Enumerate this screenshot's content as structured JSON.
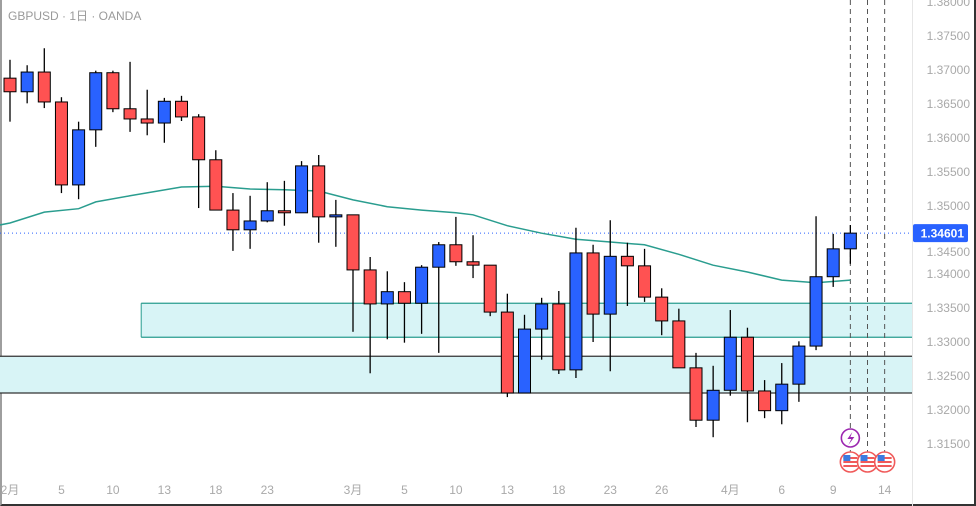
{
  "header": {
    "title": "GBPUSD · 1日 · OANDA"
  },
  "colors": {
    "up": "#2962ff",
    "down": "#ff5252",
    "ma": "#2a9d8f",
    "zone_fill": "#d8f4f6",
    "zone1_border": "#2a9d8f",
    "zone2_border": "#333333",
    "last_price": "#2962ff"
  },
  "chart_data": {
    "type": "candlestick",
    "symbol": "GBPUSD",
    "timeframe": "1日",
    "source": "OANDA",
    "ylim": [
      1.3124,
      1.3806
    ],
    "y_ticks": [
      "1.38000",
      "1.37500",
      "1.37000",
      "1.36500",
      "1.36000",
      "1.35500",
      "1.35000",
      "1.34500",
      "1.34000",
      "1.33500",
      "1.33000",
      "1.32500",
      "1.32000",
      "1.31500"
    ],
    "x_ticks": [
      {
        "index": 1,
        "label": "2月"
      },
      {
        "index": 4,
        "label": "5"
      },
      {
        "index": 7,
        "label": "10"
      },
      {
        "index": 10,
        "label": "13"
      },
      {
        "index": 13,
        "label": "18"
      },
      {
        "index": 16,
        "label": "23"
      },
      {
        "index": 21,
        "label": "3月"
      },
      {
        "index": 24,
        "label": "5"
      },
      {
        "index": 27,
        "label": "10"
      },
      {
        "index": 30,
        "label": "13"
      },
      {
        "index": 33,
        "label": "18"
      },
      {
        "index": 36,
        "label": "23"
      },
      {
        "index": 39,
        "label": "26"
      },
      {
        "index": 43,
        "label": "4月"
      },
      {
        "index": 46,
        "label": "6"
      },
      {
        "index": 49,
        "label": "9"
      },
      {
        "index": 52,
        "label": "14"
      }
    ],
    "ohlc": [
      [
        1.3688,
        1.3715,
        1.3624,
        1.3668
      ],
      [
        1.3668,
        1.3707,
        1.3651,
        1.3697
      ],
      [
        1.3697,
        1.3732,
        1.3644,
        1.3653
      ],
      [
        1.3653,
        1.366,
        1.3519,
        1.3531
      ],
      [
        1.3531,
        1.3624,
        1.351,
        1.3612
      ],
      [
        1.3612,
        1.3699,
        1.3587,
        1.3696
      ],
      [
        1.3696,
        1.3699,
        1.3638,
        1.3643
      ],
      [
        1.3643,
        1.3712,
        1.3609,
        1.3628
      ],
      [
        1.3628,
        1.3671,
        1.3604,
        1.3622
      ],
      [
        1.3622,
        1.3659,
        1.3593,
        1.3654
      ],
      [
        1.3654,
        1.3662,
        1.3625,
        1.3631
      ],
      [
        1.3631,
        1.3635,
        1.3497,
        1.3568
      ],
      [
        1.3568,
        1.3582,
        1.3494,
        1.3494
      ],
      [
        1.3494,
        1.3519,
        1.3434,
        1.3465
      ],
      [
        1.3465,
        1.3515,
        1.3437,
        1.3478
      ],
      [
        1.3478,
        1.3535,
        1.3476,
        1.3493
      ],
      [
        1.3493,
        1.3537,
        1.3471,
        1.349
      ],
      [
        1.349,
        1.3566,
        1.349,
        1.3559
      ],
      [
        1.3559,
        1.3575,
        1.3446,
        1.3484
      ],
      [
        1.3484,
        1.3509,
        1.344,
        1.3487
      ],
      [
        1.3487,
        1.3487,
        1.3315,
        1.3406
      ],
      [
        1.3406,
        1.3425,
        1.3254,
        1.3356
      ],
      [
        1.3356,
        1.3404,
        1.3304,
        1.3374
      ],
      [
        1.3374,
        1.3388,
        1.3299,
        1.3357
      ],
      [
        1.3357,
        1.3413,
        1.3312,
        1.341
      ],
      [
        1.341,
        1.3447,
        1.3284,
        1.3443
      ],
      [
        1.3443,
        1.3484,
        1.3412,
        1.3418
      ],
      [
        1.3418,
        1.3457,
        1.3394,
        1.3413
      ],
      [
        1.3413,
        1.3413,
        1.3338,
        1.3344
      ],
      [
        1.3344,
        1.3371,
        1.3219,
        1.3225
      ],
      [
        1.3225,
        1.334,
        1.3225,
        1.3319
      ],
      [
        1.3319,
        1.3365,
        1.3274,
        1.3356
      ],
      [
        1.3356,
        1.3375,
        1.3253,
        1.3259
      ],
      [
        1.3259,
        1.3468,
        1.3247,
        1.3431
      ],
      [
        1.3431,
        1.3443,
        1.33,
        1.3341
      ],
      [
        1.3341,
        1.3479,
        1.3257,
        1.3426
      ],
      [
        1.3426,
        1.3446,
        1.3353,
        1.3412
      ],
      [
        1.3412,
        1.3437,
        1.3359,
        1.3366
      ],
      [
        1.3366,
        1.3379,
        1.331,
        1.3331
      ],
      [
        1.3331,
        1.3349,
        1.3262,
        1.3262
      ],
      [
        1.3262,
        1.3284,
        1.3175,
        1.3185
      ],
      [
        1.3185,
        1.3265,
        1.316,
        1.3229
      ],
      [
        1.3229,
        1.3347,
        1.3221,
        1.3307
      ],
      [
        1.3307,
        1.3321,
        1.3182,
        1.3228
      ],
      [
        1.3228,
        1.3244,
        1.3188,
        1.3199
      ],
      [
        1.3199,
        1.3269,
        1.3179,
        1.3238
      ],
      [
        1.3238,
        1.3301,
        1.3212,
        1.3294
      ],
      [
        1.3294,
        1.3485,
        1.3288,
        1.3396
      ],
      [
        1.3396,
        1.3459,
        1.3381,
        1.3437
      ],
      [
        1.3437,
        1.3472,
        1.3415,
        1.34601
      ]
    ],
    "moving_average": [
      [
        0.4,
        1.3472
      ],
      [
        1,
        1.3475
      ],
      [
        3,
        1.3491
      ],
      [
        5,
        1.3496
      ],
      [
        6,
        1.3506
      ],
      [
        8,
        1.3515
      ],
      [
        11,
        1.3528
      ],
      [
        13,
        1.3529
      ],
      [
        15,
        1.3525
      ],
      [
        17,
        1.3524
      ],
      [
        19,
        1.3522
      ],
      [
        21,
        1.3509
      ],
      [
        23,
        1.3499
      ],
      [
        25,
        1.3494
      ],
      [
        27,
        1.349
      ],
      [
        28,
        1.3487
      ],
      [
        30,
        1.3471
      ],
      [
        32,
        1.346
      ],
      [
        34,
        1.3451
      ],
      [
        36,
        1.3447
      ],
      [
        38,
        1.3443
      ],
      [
        40,
        1.3429
      ],
      [
        42,
        1.3413
      ],
      [
        44,
        1.3403
      ],
      [
        46,
        1.3391
      ],
      [
        48,
        1.3387
      ],
      [
        50,
        1.3391
      ]
    ],
    "zones": [
      {
        "name": "supply-demand-zone-upper",
        "start_index": 9,
        "top": 1.3357,
        "bottom": 1.3307
      },
      {
        "name": "supply-demand-zone-lower",
        "start_index": 0.4,
        "top": 1.3279,
        "bottom": 1.3225
      }
    ],
    "last_price": {
      "value": 1.34601,
      "label": "1.34601"
    },
    "event_lines": [
      50,
      51,
      52
    ],
    "events": [
      {
        "index": 50,
        "type": "lightning-icon"
      },
      {
        "index": 50,
        "type": "us-flag-icon"
      },
      {
        "index": 51,
        "type": "us-flag-icon"
      },
      {
        "index": 52,
        "type": "us-flag-icon"
      }
    ]
  }
}
